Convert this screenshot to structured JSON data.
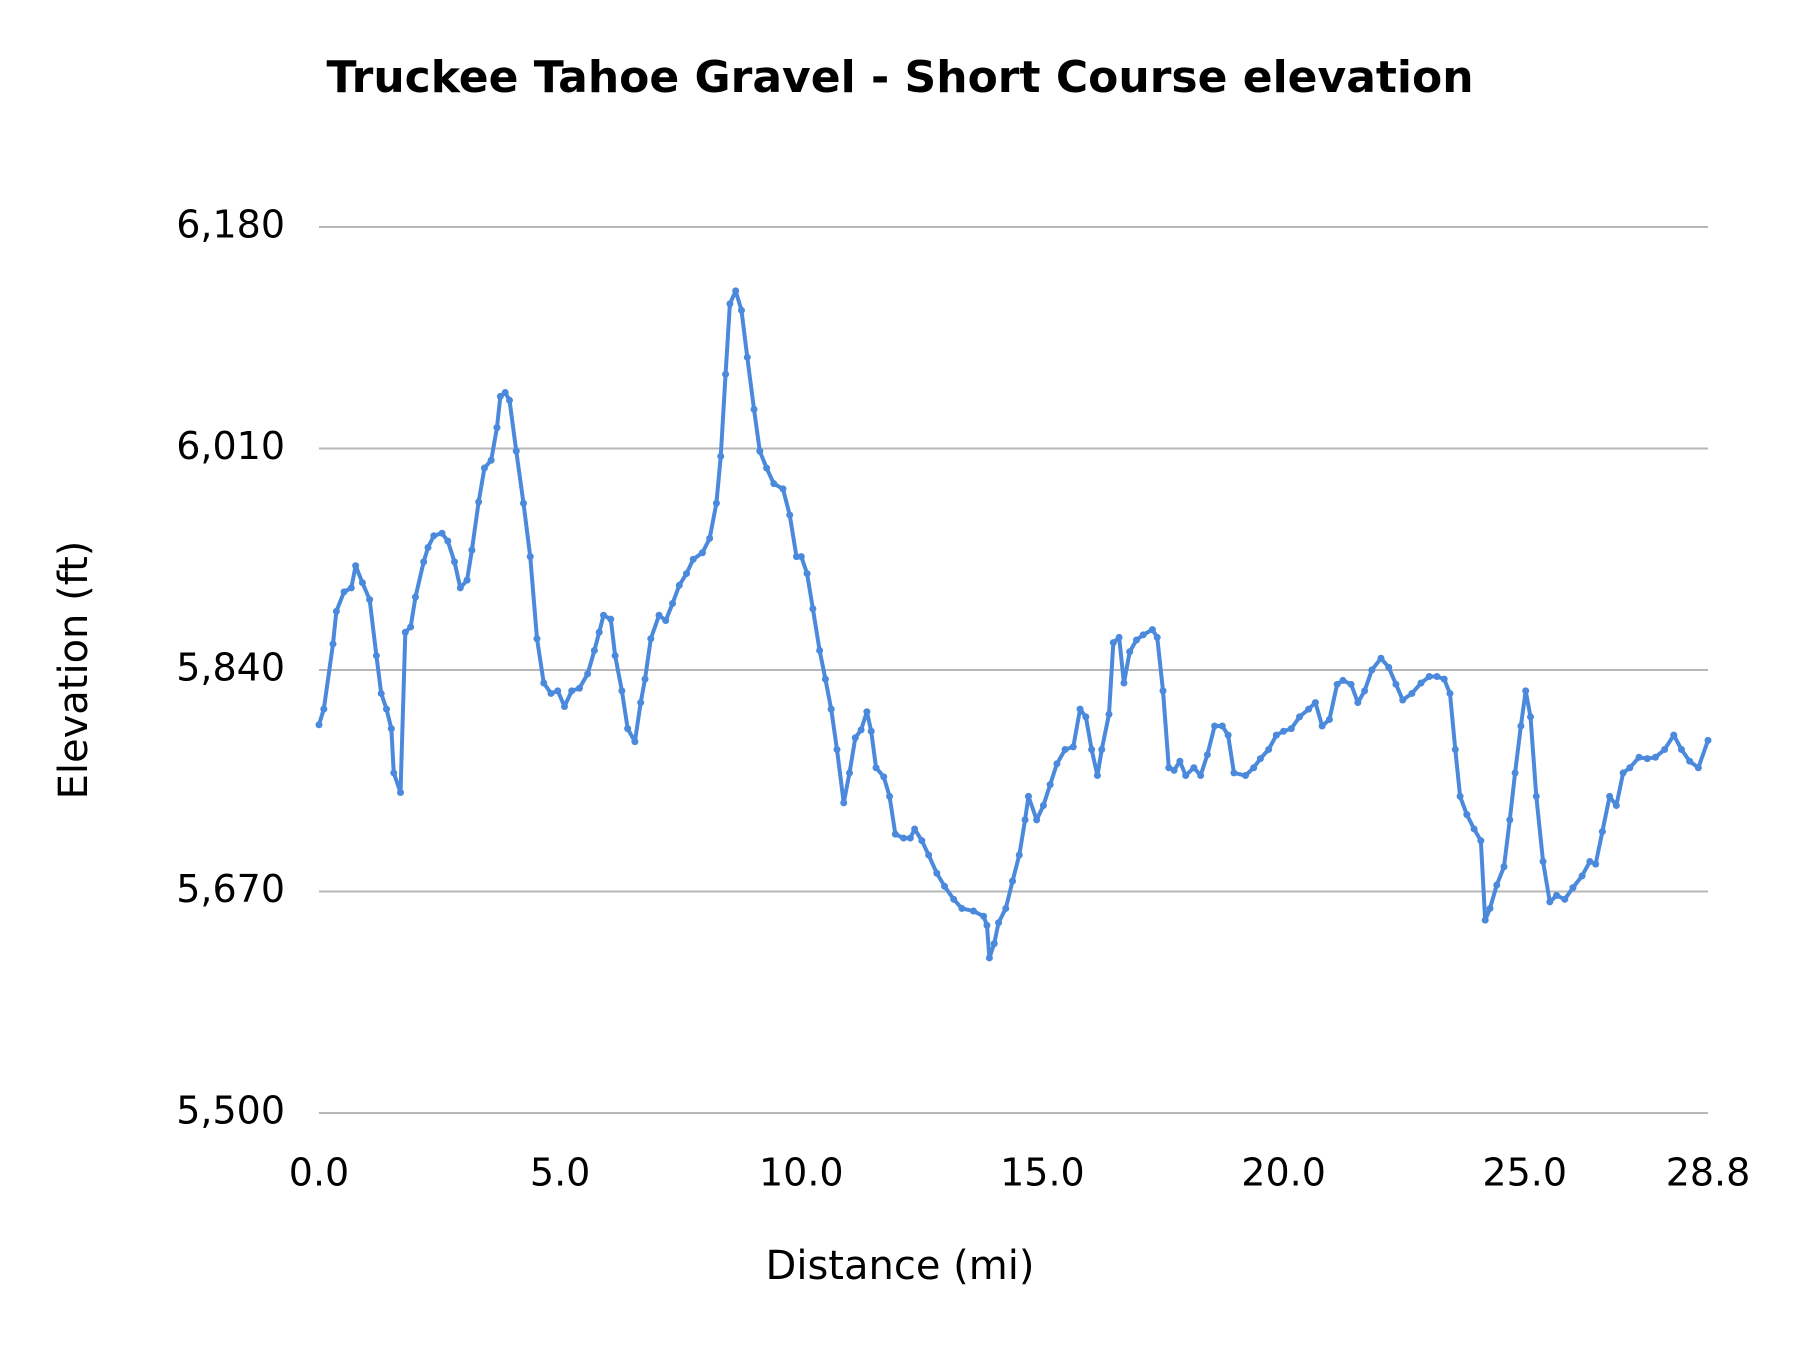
{
  "chart_data": {
    "type": "line",
    "title": "Truckee Tahoe Gravel - Short Course elevation",
    "x_label": "Distance (mi)",
    "y_label": "Elevation (ft)",
    "color": "#4a89dc",
    "grid": true,
    "xlim": [
      0,
      28.8
    ],
    "xticks": [
      {
        "value": 0,
        "label": "0.0"
      },
      {
        "value": 5,
        "label": "5.0"
      },
      {
        "value": 10,
        "label": "10.0"
      },
      {
        "value": 15,
        "label": "15.0"
      },
      {
        "value": 20,
        "label": "20.0"
      },
      {
        "value": 25,
        "label": "25.0"
      },
      28.8
    ],
    "ylim": [
      5500,
      6180
    ],
    "yticks": [
      {
        "value": 5500,
        "label": "5,500"
      },
      {
        "value": 5670,
        "label": "5,670"
      },
      {
        "value": 5840,
        "label": "5,840"
      },
      {
        "value": 6010,
        "label": "6,010"
      },
      {
        "value": 6180,
        "label": "6,180"
      }
    ],
    "x": [
      0,
      0.1,
      0.29,
      0.36,
      0.52,
      0.67,
      0.76,
      0.9,
      1.05,
      1.19,
      1.29,
      1.4,
      1.5,
      1.55,
      1.69,
      1.79,
      1.9,
      2.0,
      2.17,
      2.26,
      2.38,
      2.55,
      2.67,
      2.81,
      2.93,
      3.07,
      3.17,
      3.31,
      3.43,
      3.57,
      3.69,
      3.76,
      3.86,
      3.95,
      4.09,
      4.24,
      4.38,
      4.52,
      4.66,
      4.81,
      4.95,
      5.09,
      5.24,
      5.4,
      5.57,
      5.71,
      5.81,
      5.9,
      6.05,
      6.14,
      6.28,
      6.4,
      6.55,
      6.67,
      6.76,
      6.88,
      7.05,
      7.19,
      7.33,
      7.47,
      7.62,
      7.76,
      7.95,
      8.1,
      8.24,
      8.33,
      8.43,
      8.52,
      8.64,
      8.76,
      8.88,
      9.02,
      9.14,
      9.28,
      9.43,
      9.62,
      9.76,
      9.9,
      10.0,
      10.12,
      10.24,
      10.38,
      10.5,
      10.62,
      10.74,
      10.88,
      11.0,
      11.12,
      11.24,
      11.36,
      11.45,
      11.55,
      11.71,
      11.83,
      11.95,
      12.12,
      12.26,
      12.35,
      12.5,
      12.64,
      12.81,
      12.97,
      13.16,
      13.33,
      13.57,
      13.78,
      13.85,
      13.9,
      14.0,
      14.09,
      14.24,
      14.38,
      14.52,
      14.64,
      14.71,
      14.88,
      15.02,
      15.16,
      15.3,
      15.47,
      15.64,
      15.78,
      15.9,
      16.02,
      16.14,
      16.23,
      16.38,
      16.47,
      16.59,
      16.69,
      16.81,
      16.95,
      17.09,
      17.28,
      17.38,
      17.5,
      17.62,
      17.73,
      17.85,
      17.97,
      18.14,
      18.28,
      18.42,
      18.57,
      18.73,
      18.85,
      18.97,
      19.21,
      19.38,
      19.52,
      19.69,
      19.85,
      20.0,
      20.16,
      20.33,
      20.52,
      20.66,
      20.8,
      20.95,
      21.11,
      21.23,
      21.4,
      21.54,
      21.68,
      21.83,
      22.02,
      22.18,
      22.33,
      22.47,
      22.66,
      22.85,
      23.02,
      23.18,
      23.33,
      23.45,
      23.56,
      23.66,
      23.8,
      23.95,
      24.09,
      24.18,
      24.28,
      24.42,
      24.57,
      24.69,
      24.8,
      24.92,
      25.02,
      25.12,
      25.24,
      25.38,
      25.52,
      25.66,
      25.83,
      26.0,
      26.19,
      26.35,
      26.47,
      26.61,
      26.76,
      26.9,
      27.04,
      27.18,
      27.37,
      27.54,
      27.71,
      27.9,
      28.09,
      28.25,
      28.42,
      28.6,
      28.8
    ],
    "values": [
      5798,
      5810,
      5860,
      5885,
      5900,
      5903,
      5920,
      5907,
      5894,
      5851,
      5822,
      5810,
      5795,
      5761,
      5746,
      5869,
      5873,
      5896,
      5923,
      5934,
      5943,
      5945,
      5939,
      5923,
      5903,
      5909,
      5932,
      5969,
      5995,
      6001,
      6026,
      6050,
      6053,
      6047,
      6008,
      5968,
      5927,
      5864,
      5830,
      5822,
      5824,
      5812,
      5824,
      5826,
      5837,
      5855,
      5869,
      5882,
      5879,
      5851,
      5824,
      5795,
      5785,
      5815,
      5833,
      5864,
      5882,
      5878,
      5891,
      5905,
      5914,
      5925,
      5930,
      5941,
      5968,
      6004,
      6067,
      6121,
      6131,
      6116,
      6080,
      6040,
      6008,
      5995,
      5983,
      5979,
      5959,
      5927,
      5927,
      5914,
      5887,
      5855,
      5833,
      5810,
      5779,
      5738,
      5761,
      5788,
      5794,
      5808,
      5793,
      5765,
      5758,
      5743,
      5714,
      5711,
      5711,
      5718,
      5709,
      5698,
      5684,
      5674,
      5664,
      5657,
      5655,
      5651,
      5644,
      5619,
      5630,
      5646,
      5657,
      5678,
      5698,
      5725,
      5743,
      5725,
      5736,
      5752,
      5768,
      5779,
      5781,
      5810,
      5804,
      5779,
      5759,
      5779,
      5806,
      5861,
      5865,
      5830,
      5854,
      5863,
      5867,
      5871,
      5865,
      5824,
      5765,
      5763,
      5770,
      5759,
      5765,
      5759,
      5775,
      5797,
      5797,
      5790,
      5761,
      5759,
      5765,
      5772,
      5779,
      5790,
      5793,
      5795,
      5804,
      5810,
      5815,
      5797,
      5802,
      5829,
      5832,
      5829,
      5815,
      5824,
      5840,
      5849,
      5842,
      5829,
      5817,
      5822,
      5830,
      5835,
      5835,
      5833,
      5822,
      5779,
      5743,
      5729,
      5718,
      5709,
      5648,
      5657,
      5675,
      5689,
      5725,
      5761,
      5797,
      5824,
      5804,
      5743,
      5693,
      5662,
      5667,
      5664,
      5673,
      5682,
      5693,
      5691,
      5716,
      5743,
      5736,
      5761,
      5765,
      5773,
      5772,
      5773,
      5779,
      5790,
      5779,
      5770,
      5765,
      5786
    ]
  }
}
